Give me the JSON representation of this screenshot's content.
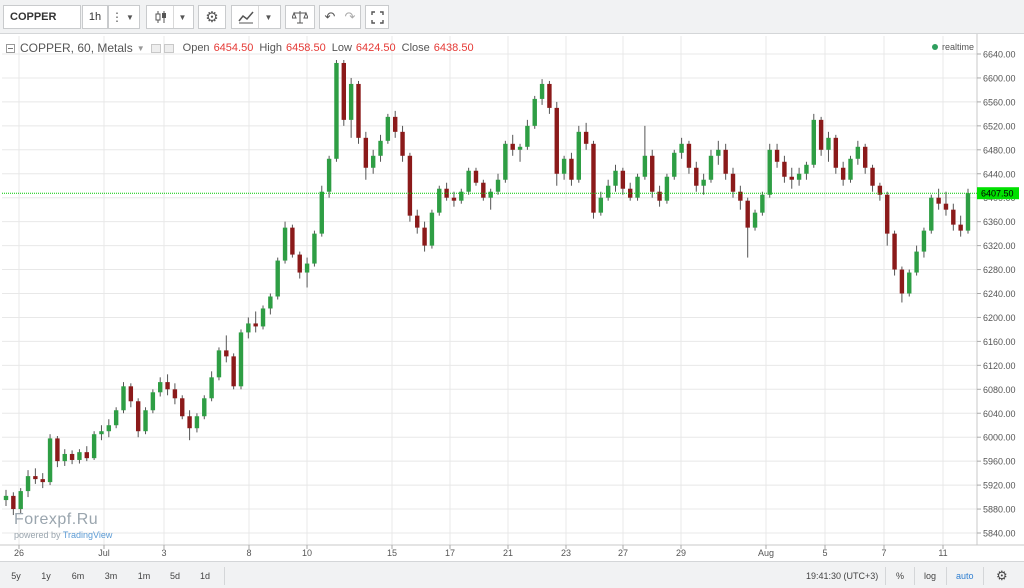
{
  "toolbar": {
    "symbol": "COPPER",
    "interval": "1h",
    "icons": [
      "bars-menu-icon",
      "dropdown-caret-icon",
      "candles-icon",
      "dropdown-caret-icon",
      "gear-icon",
      "indicators-icon",
      "dropdown-caret-icon",
      "compare-icon",
      "undo-icon",
      "redo-icon",
      "fullscreen-icon"
    ]
  },
  "legend": {
    "title": "COPPER, 60, Metals",
    "open_label": "Open",
    "open": "6454.50",
    "high_label": "High",
    "high": "6458.50",
    "low_label": "Low",
    "low": "6424.50",
    "close_label": "Close",
    "close": "6438.50"
  },
  "realtime": "realtime",
  "watermark": {
    "brand": "Forexpf.Ru",
    "powered": "powered by",
    "provider": "TradingView"
  },
  "bottom": {
    "ranges": [
      "5y",
      "1y",
      "6m",
      "3m",
      "1m",
      "5d",
      "1d"
    ],
    "time": "19:41:30 (UTC+3)",
    "percent": "%",
    "log": "log",
    "auto": "auto"
  },
  "chart_data": {
    "type": "candlestick",
    "symbol": "COPPER",
    "interval_minutes": 60,
    "ylim": [
      5820,
      6660
    ],
    "y_ticks": [
      5840,
      5880,
      5920,
      5960,
      6000,
      6040,
      6080,
      6120,
      6160,
      6200,
      6240,
      6280,
      6320,
      6360,
      6400,
      6440,
      6480,
      6520,
      6560,
      6600,
      6640
    ],
    "x_tick_labels": [
      "26",
      "Jul",
      "3",
      "8",
      "10",
      "15",
      "17",
      "21",
      "23",
      "27",
      "29",
      "Aug",
      "5",
      "7",
      "11"
    ],
    "current_price": 6407.5,
    "current_price_label": "6407.50",
    "colors": {
      "up": "#2e9e44",
      "down": "#8b1a1a",
      "wick": "#555555",
      "grid": "#e8e8e8",
      "price_line": "#00c800",
      "price_tag": "#00e000"
    },
    "candles": [
      {
        "o": 5895,
        "h": 5912,
        "l": 5885,
        "c": 5902
      },
      {
        "o": 5902,
        "h": 5908,
        "l": 5870,
        "c": 5880
      },
      {
        "o": 5880,
        "h": 5915,
        "l": 5872,
        "c": 5910
      },
      {
        "o": 5910,
        "h": 5945,
        "l": 5900,
        "c": 5935
      },
      {
        "o": 5935,
        "h": 5948,
        "l": 5922,
        "c": 5930
      },
      {
        "o": 5930,
        "h": 5940,
        "l": 5915,
        "c": 5925
      },
      {
        "o": 5925,
        "h": 6005,
        "l": 5920,
        "c": 5998
      },
      {
        "o": 5998,
        "h": 6002,
        "l": 5950,
        "c": 5960
      },
      {
        "o": 5960,
        "h": 5980,
        "l": 5952,
        "c": 5972
      },
      {
        "o": 5972,
        "h": 5978,
        "l": 5955,
        "c": 5962
      },
      {
        "o": 5962,
        "h": 5980,
        "l": 5956,
        "c": 5975
      },
      {
        "o": 5975,
        "h": 5985,
        "l": 5960,
        "c": 5965
      },
      {
        "o": 5965,
        "h": 6010,
        "l": 5962,
        "c": 6005
      },
      {
        "o": 6005,
        "h": 6020,
        "l": 5995,
        "c": 6010
      },
      {
        "o": 6010,
        "h": 6030,
        "l": 6000,
        "c": 6020
      },
      {
        "o": 6020,
        "h": 6050,
        "l": 6015,
        "c": 6045
      },
      {
        "o": 6045,
        "h": 6092,
        "l": 6040,
        "c": 6085
      },
      {
        "o": 6085,
        "h": 6090,
        "l": 6050,
        "c": 6060
      },
      {
        "o": 6060,
        "h": 6065,
        "l": 6000,
        "c": 6010
      },
      {
        "o": 6010,
        "h": 6050,
        "l": 6005,
        "c": 6045
      },
      {
        "o": 6045,
        "h": 6080,
        "l": 6040,
        "c": 6075
      },
      {
        "o": 6075,
        "h": 6100,
        "l": 6068,
        "c": 6092
      },
      {
        "o": 6092,
        "h": 6105,
        "l": 6070,
        "c": 6080
      },
      {
        "o": 6080,
        "h": 6090,
        "l": 6055,
        "c": 6065
      },
      {
        "o": 6065,
        "h": 6070,
        "l": 6030,
        "c": 6035
      },
      {
        "o": 6035,
        "h": 6045,
        "l": 5995,
        "c": 6015
      },
      {
        "o": 6015,
        "h": 6040,
        "l": 6008,
        "c": 6035
      },
      {
        "o": 6035,
        "h": 6070,
        "l": 6030,
        "c": 6065
      },
      {
        "o": 6065,
        "h": 6110,
        "l": 6060,
        "c": 6100
      },
      {
        "o": 6100,
        "h": 6150,
        "l": 6095,
        "c": 6145
      },
      {
        "o": 6145,
        "h": 6170,
        "l": 6125,
        "c": 6135
      },
      {
        "o": 6135,
        "h": 6140,
        "l": 6080,
        "c": 6085
      },
      {
        "o": 6085,
        "h": 6180,
        "l": 6080,
        "c": 6175
      },
      {
        "o": 6175,
        "h": 6200,
        "l": 6165,
        "c": 6190
      },
      {
        "o": 6190,
        "h": 6210,
        "l": 6175,
        "c": 6185
      },
      {
        "o": 6185,
        "h": 6220,
        "l": 6180,
        "c": 6215
      },
      {
        "o": 6215,
        "h": 6240,
        "l": 6205,
        "c": 6235
      },
      {
        "o": 6235,
        "h": 6300,
        "l": 6230,
        "c": 6295
      },
      {
        "o": 6295,
        "h": 6360,
        "l": 6290,
        "c": 6350
      },
      {
        "o": 6350,
        "h": 6355,
        "l": 6300,
        "c": 6305
      },
      {
        "o": 6305,
        "h": 6310,
        "l": 6265,
        "c": 6275
      },
      {
        "o": 6275,
        "h": 6300,
        "l": 6250,
        "c": 6290
      },
      {
        "o": 6290,
        "h": 6345,
        "l": 6285,
        "c": 6340
      },
      {
        "o": 6340,
        "h": 6420,
        "l": 6335,
        "c": 6410
      },
      {
        "o": 6410,
        "h": 6470,
        "l": 6400,
        "c": 6465
      },
      {
        "o": 6465,
        "h": 6630,
        "l": 6460,
        "c": 6625
      },
      {
        "o": 6625,
        "h": 6630,
        "l": 6520,
        "c": 6530
      },
      {
        "o": 6530,
        "h": 6600,
        "l": 6500,
        "c": 6590
      },
      {
        "o": 6590,
        "h": 6595,
        "l": 6490,
        "c": 6500
      },
      {
        "o": 6500,
        "h": 6510,
        "l": 6430,
        "c": 6450
      },
      {
        "o": 6450,
        "h": 6480,
        "l": 6440,
        "c": 6470
      },
      {
        "o": 6470,
        "h": 6505,
        "l": 6460,
        "c": 6495
      },
      {
        "o": 6495,
        "h": 6540,
        "l": 6490,
        "c": 6535
      },
      {
        "o": 6535,
        "h": 6545,
        "l": 6500,
        "c": 6510
      },
      {
        "o": 6510,
        "h": 6520,
        "l": 6460,
        "c": 6470
      },
      {
        "o": 6470,
        "h": 6475,
        "l": 6360,
        "c": 6370
      },
      {
        "o": 6370,
        "h": 6380,
        "l": 6340,
        "c": 6350
      },
      {
        "o": 6350,
        "h": 6360,
        "l": 6310,
        "c": 6320
      },
      {
        "o": 6320,
        "h": 6380,
        "l": 6315,
        "c": 6375
      },
      {
        "o": 6375,
        "h": 6420,
        "l": 6370,
        "c": 6415
      },
      {
        "o": 6415,
        "h": 6425,
        "l": 6395,
        "c": 6400
      },
      {
        "o": 6400,
        "h": 6410,
        "l": 6385,
        "c": 6395
      },
      {
        "o": 6395,
        "h": 6415,
        "l": 6390,
        "c": 6410
      },
      {
        "o": 6410,
        "h": 6450,
        "l": 6405,
        "c": 6445
      },
      {
        "o": 6445,
        "h": 6450,
        "l": 6420,
        "c": 6425
      },
      {
        "o": 6425,
        "h": 6430,
        "l": 6395,
        "c": 6400
      },
      {
        "o": 6400,
        "h": 6415,
        "l": 6380,
        "c": 6410
      },
      {
        "o": 6410,
        "h": 6440,
        "l": 6405,
        "c": 6430
      },
      {
        "o": 6430,
        "h": 6495,
        "l": 6425,
        "c": 6490
      },
      {
        "o": 6490,
        "h": 6505,
        "l": 6470,
        "c": 6480
      },
      {
        "o": 6480,
        "h": 6490,
        "l": 6460,
        "c": 6485
      },
      {
        "o": 6485,
        "h": 6530,
        "l": 6480,
        "c": 6520
      },
      {
        "o": 6520,
        "h": 6570,
        "l": 6515,
        "c": 6565
      },
      {
        "o": 6565,
        "h": 6598,
        "l": 6555,
        "c": 6590
      },
      {
        "o": 6590,
        "h": 6595,
        "l": 6540,
        "c": 6550
      },
      {
        "o": 6550,
        "h": 6560,
        "l": 6420,
        "c": 6440
      },
      {
        "o": 6440,
        "h": 6470,
        "l": 6430,
        "c": 6465
      },
      {
        "o": 6465,
        "h": 6475,
        "l": 6420,
        "c": 6430
      },
      {
        "o": 6430,
        "h": 6520,
        "l": 6425,
        "c": 6510
      },
      {
        "o": 6510,
        "h": 6525,
        "l": 6480,
        "c": 6490
      },
      {
        "o": 6490,
        "h": 6495,
        "l": 6365,
        "c": 6375
      },
      {
        "o": 6375,
        "h": 6410,
        "l": 6370,
        "c": 6400
      },
      {
        "o": 6400,
        "h": 6430,
        "l": 6395,
        "c": 6420
      },
      {
        "o": 6420,
        "h": 6455,
        "l": 6410,
        "c": 6445
      },
      {
        "o": 6445,
        "h": 6450,
        "l": 6405,
        "c": 6415
      },
      {
        "o": 6415,
        "h": 6425,
        "l": 6395,
        "c": 6400
      },
      {
        "o": 6400,
        "h": 6440,
        "l": 6395,
        "c": 6435
      },
      {
        "o": 6435,
        "h": 6520,
        "l": 6430,
        "c": 6470
      },
      {
        "o": 6470,
        "h": 6480,
        "l": 6400,
        "c": 6410
      },
      {
        "o": 6410,
        "h": 6420,
        "l": 6385,
        "c": 6395
      },
      {
        "o": 6395,
        "h": 6440,
        "l": 6390,
        "c": 6435
      },
      {
        "o": 6435,
        "h": 6480,
        "l": 6430,
        "c": 6475
      },
      {
        "o": 6475,
        "h": 6500,
        "l": 6465,
        "c": 6490
      },
      {
        "o": 6490,
        "h": 6495,
        "l": 6440,
        "c": 6450
      },
      {
        "o": 6450,
        "h": 6460,
        "l": 6410,
        "c": 6420
      },
      {
        "o": 6420,
        "h": 6440,
        "l": 6405,
        "c": 6430
      },
      {
        "o": 6430,
        "h": 6480,
        "l": 6425,
        "c": 6470
      },
      {
        "o": 6470,
        "h": 6495,
        "l": 6455,
        "c": 6480
      },
      {
        "o": 6480,
        "h": 6490,
        "l": 6430,
        "c": 6440
      },
      {
        "o": 6440,
        "h": 6450,
        "l": 6400,
        "c": 6410
      },
      {
        "o": 6410,
        "h": 6420,
        "l": 6380,
        "c": 6395
      },
      {
        "o": 6395,
        "h": 6400,
        "l": 6300,
        "c": 6350
      },
      {
        "o": 6350,
        "h": 6380,
        "l": 6345,
        "c": 6375
      },
      {
        "o": 6375,
        "h": 6410,
        "l": 6370,
        "c": 6405
      },
      {
        "o": 6405,
        "h": 6490,
        "l": 6400,
        "c": 6480
      },
      {
        "o": 6480,
        "h": 6490,
        "l": 6450,
        "c": 6460
      },
      {
        "o": 6460,
        "h": 6470,
        "l": 6425,
        "c": 6435
      },
      {
        "o": 6435,
        "h": 6450,
        "l": 6415,
        "c": 6430
      },
      {
        "o": 6430,
        "h": 6450,
        "l": 6420,
        "c": 6440
      },
      {
        "o": 6440,
        "h": 6460,
        "l": 6430,
        "c": 6455
      },
      {
        "o": 6455,
        "h": 6540,
        "l": 6450,
        "c": 6530
      },
      {
        "o": 6530,
        "h": 6535,
        "l": 6470,
        "c": 6480
      },
      {
        "o": 6480,
        "h": 6510,
        "l": 6460,
        "c": 6500
      },
      {
        "o": 6500,
        "h": 6505,
        "l": 6440,
        "c": 6450
      },
      {
        "o": 6450,
        "h": 6460,
        "l": 6420,
        "c": 6430
      },
      {
        "o": 6430,
        "h": 6470,
        "l": 6425,
        "c": 6465
      },
      {
        "o": 6465,
        "h": 6495,
        "l": 6455,
        "c": 6485
      },
      {
        "o": 6485,
        "h": 6490,
        "l": 6440,
        "c": 6450
      },
      {
        "o": 6450,
        "h": 6455,
        "l": 6410,
        "c": 6420
      },
      {
        "o": 6420,
        "h": 6425,
        "l": 6395,
        "c": 6405
      },
      {
        "o": 6405,
        "h": 6410,
        "l": 6320,
        "c": 6340
      },
      {
        "o": 6340,
        "h": 6345,
        "l": 6270,
        "c": 6280
      },
      {
        "o": 6280,
        "h": 6285,
        "l": 6225,
        "c": 6240
      },
      {
        "o": 6240,
        "h": 6280,
        "l": 6235,
        "c": 6275
      },
      {
        "o": 6275,
        "h": 6320,
        "l": 6270,
        "c": 6310
      },
      {
        "o": 6310,
        "h": 6350,
        "l": 6300,
        "c": 6345
      },
      {
        "o": 6345,
        "h": 6405,
        "l": 6340,
        "c": 6400
      },
      {
        "o": 6400,
        "h": 6415,
        "l": 6380,
        "c": 6390
      },
      {
        "o": 6390,
        "h": 6410,
        "l": 6370,
        "c": 6380
      },
      {
        "o": 6380,
        "h": 6390,
        "l": 6345,
        "c": 6355
      },
      {
        "o": 6355,
        "h": 6370,
        "l": 6335,
        "c": 6345
      },
      {
        "o": 6345,
        "h": 6415,
        "l": 6340,
        "c": 6407.5
      }
    ]
  }
}
